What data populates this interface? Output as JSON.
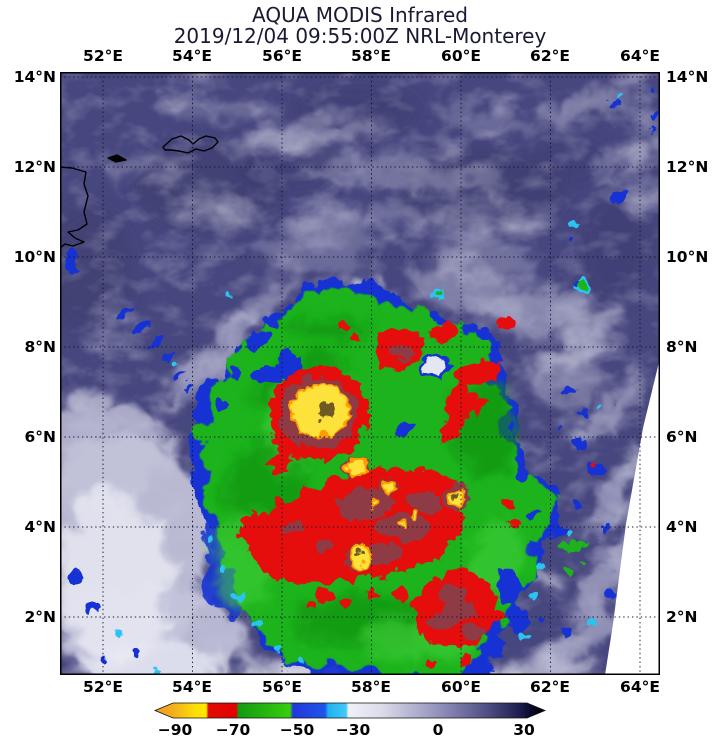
{
  "header": {
    "title": "AQUA MODIS Infrared",
    "subtitle": "2019/12/04 09:55:00Z NRL-Monterey"
  },
  "axes": {
    "lon_labels": [
      "52°E",
      "54°E",
      "56°E",
      "58°E",
      "60°E",
      "62°E",
      "64°E"
    ],
    "lat_labels": [
      "14°N",
      "12°N",
      "10°N",
      "8°N",
      "6°N",
      "4°N",
      "2°N"
    ]
  },
  "colorbar": {
    "ticks": [
      "−90",
      "−70",
      "−50",
      "−30",
      "0",
      "30"
    ],
    "stops": [
      {
        "o": 0.0,
        "c": "#ef9c28"
      },
      {
        "o": 0.046,
        "c": "#f4ad1e"
      },
      {
        "o": 0.1,
        "c": "#fddc08"
      },
      {
        "o": 0.131,
        "c": "#ffeb00"
      },
      {
        "o": 0.137,
        "c": "#e00d00"
      },
      {
        "o": 0.208,
        "c": "#e30000"
      },
      {
        "o": 0.214,
        "c": "#149a10"
      },
      {
        "o": 0.346,
        "c": "#37ce0e"
      },
      {
        "o": 0.354,
        "c": "#2336da"
      },
      {
        "o": 0.436,
        "c": "#1e55ea"
      },
      {
        "o": 0.444,
        "c": "#20b2f0"
      },
      {
        "o": 0.49,
        "c": "#41c9fa"
      },
      {
        "o": 0.496,
        "c": "#f0f1f8"
      },
      {
        "o": 0.58,
        "c": "#dcdcea"
      },
      {
        "o": 0.726,
        "c": "#9392bd"
      },
      {
        "o": 0.86,
        "c": "#4a4a80"
      },
      {
        "o": 0.936,
        "c": "#1d1d4e"
      },
      {
        "o": 0.963,
        "c": "#0a0a28"
      },
      {
        "o": 1.0,
        "c": "#000005"
      }
    ]
  },
  "map": {
    "palette": {
      "sea": "#47477f",
      "sea_dark": "#3a3a6c",
      "cloud": "#c3c3da",
      "cloud_bright": "#eaebf4",
      "green": "#1db31c",
      "green_dark": "#0e8d0e",
      "green_bright": "#45d23c",
      "blue": "#1433d4",
      "cyan": "#2cc3f2",
      "red": "#e60d0d",
      "maroon": "#8f3a44",
      "yellow": "#fce23a",
      "olive": "#6e5a20",
      "swath": "#ffffff"
    }
  }
}
